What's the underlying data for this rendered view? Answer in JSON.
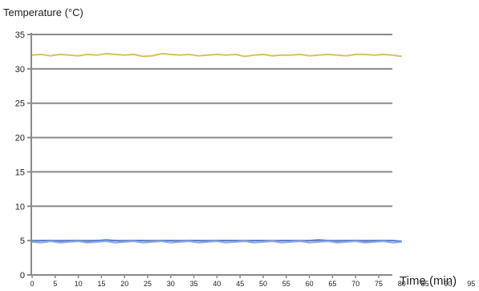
{
  "chart_data": {
    "type": "line",
    "ylabel": "Temperature (°C)",
    "xlabel": "Time (min)",
    "xlim": [
      0,
      95
    ],
    "ylim": [
      0,
      35
    ],
    "yticks": [
      0,
      5,
      10,
      15,
      20,
      25,
      30,
      35
    ],
    "xticks": [
      0,
      5,
      10,
      15,
      20,
      25,
      30,
      35,
      40,
      45,
      50,
      55,
      60,
      65,
      70,
      75,
      80,
      85,
      90,
      95
    ],
    "grid": "horizontal",
    "series": [
      {
        "color": "#d7c35a",
        "x": [
          0,
          2,
          4,
          6,
          8,
          10,
          12,
          14,
          16,
          18,
          20,
          22,
          24,
          26,
          28,
          30,
          32,
          34,
          36,
          38,
          40,
          42,
          44,
          46,
          48,
          50,
          52,
          54,
          56,
          58,
          60,
          62,
          64,
          66,
          68,
          70,
          72,
          74,
          76,
          78,
          80
        ],
        "y": [
          32.0,
          32.1,
          31.9,
          32.1,
          32.0,
          31.9,
          32.1,
          32.0,
          32.2,
          32.1,
          32.0,
          32.1,
          31.8,
          31.9,
          32.2,
          32.1,
          32.0,
          32.1,
          31.9,
          32.0,
          32.1,
          32.0,
          32.1,
          31.8,
          32.0,
          32.1,
          31.9,
          32.0,
          32.0,
          32.1,
          31.9,
          32.0,
          32.1,
          32.0,
          31.9,
          32.1,
          32.1,
          32.0,
          32.1,
          32.0,
          31.8
        ]
      },
      {
        "color": "#5b7fd6",
        "x": [
          0,
          2,
          4,
          6,
          8,
          10,
          12,
          14,
          16,
          18,
          20,
          22,
          24,
          26,
          28,
          30,
          32,
          34,
          36,
          38,
          40,
          42,
          44,
          46,
          48,
          50,
          52,
          54,
          56,
          58,
          60,
          62,
          64,
          66,
          68,
          70,
          72,
          74,
          76,
          78,
          80
        ],
        "y": [
          4.9,
          5.0,
          5.0,
          4.9,
          5.0,
          5.0,
          4.9,
          5.0,
          5.1,
          5.0,
          4.9,
          5.0,
          5.0,
          4.9,
          5.0,
          5.0,
          4.9,
          5.0,
          5.0,
          4.9,
          5.0,
          5.0,
          5.0,
          4.9,
          5.0,
          5.0,
          4.9,
          5.0,
          5.0,
          4.9,
          5.0,
          5.1,
          5.0,
          4.9,
          5.0,
          5.0,
          4.9,
          5.0,
          5.0,
          5.0,
          4.9
        ]
      },
      {
        "color": "#8eaee6",
        "x": [
          0,
          2,
          4,
          6,
          8,
          10,
          12,
          14,
          16,
          18,
          20,
          22,
          24,
          26,
          28,
          30,
          32,
          34,
          36,
          38,
          40,
          42,
          44,
          46,
          48,
          50,
          52,
          54,
          56,
          58,
          60,
          62,
          64,
          66,
          68,
          70,
          72,
          74,
          76,
          78,
          80
        ],
        "y": [
          4.8,
          4.7,
          4.9,
          4.7,
          4.8,
          4.9,
          4.7,
          4.8,
          4.9,
          4.7,
          4.8,
          4.9,
          4.7,
          4.8,
          4.9,
          4.7,
          4.8,
          4.9,
          4.7,
          4.8,
          4.9,
          4.7,
          4.8,
          4.9,
          4.7,
          4.8,
          4.9,
          4.7,
          4.8,
          4.9,
          4.7,
          4.8,
          4.9,
          4.7,
          4.8,
          4.9,
          4.7,
          4.8,
          4.9,
          4.7,
          4.8
        ]
      }
    ]
  }
}
